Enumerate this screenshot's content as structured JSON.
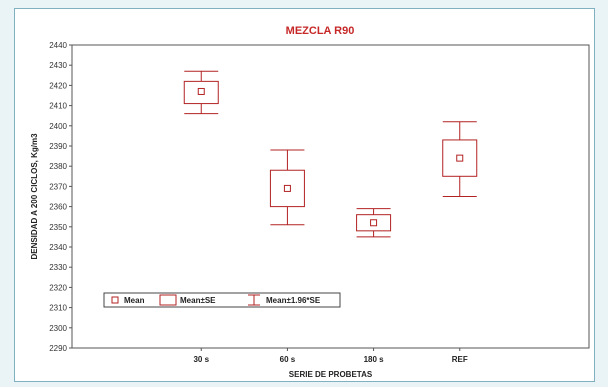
{
  "chart_data": {
    "type": "boxplot",
    "title": "MEZCLA R90",
    "xlabel": "SERIE DE PROBETAS",
    "ylabel": "DENSIDAD A 200 CICLOS, Kg/m3",
    "ylim": [
      2290,
      2440
    ],
    "yticks": [
      2290,
      2300,
      2310,
      2320,
      2330,
      2340,
      2350,
      2360,
      2370,
      2380,
      2390,
      2400,
      2410,
      2420,
      2430,
      2440
    ],
    "categories": [
      "30 s",
      "60 s",
      "180 s",
      "REF"
    ],
    "series": [
      {
        "category": "30 s",
        "mean": 2417,
        "se_low": 2411,
        "se_high": 2422,
        "ci_low": 2406,
        "ci_high": 2427
      },
      {
        "category": "60 s",
        "mean": 2369,
        "se_low": 2360,
        "se_high": 2378,
        "ci_low": 2351,
        "ci_high": 2388
      },
      {
        "category": "180 s",
        "mean": 2352,
        "se_low": 2348,
        "se_high": 2356,
        "ci_low": 2345,
        "ci_high": 2359
      },
      {
        "category": "REF",
        "mean": 2384,
        "se_low": 2375,
        "se_high": 2393,
        "ci_low": 2365,
        "ci_high": 2402
      }
    ],
    "legend": {
      "placement": "bottom-left",
      "entries": [
        "Mean",
        "Mean±SE",
        "Mean±1.96*SE"
      ]
    },
    "grid": false,
    "color": "#b22222"
  }
}
